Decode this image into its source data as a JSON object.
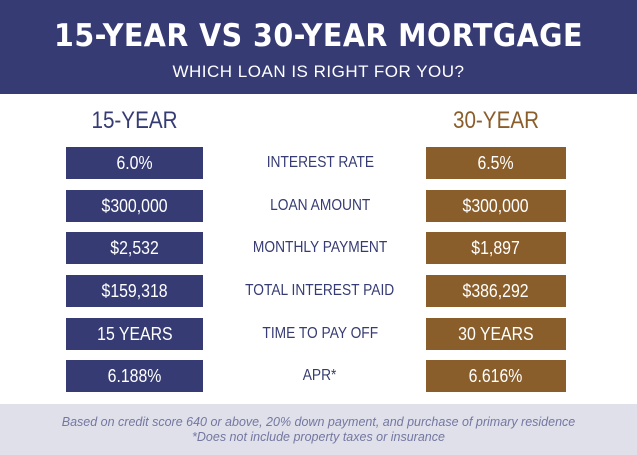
{
  "header": {
    "title": "15-YEAR VS 30-YEAR MORTGAGE",
    "subtitle": "WHICH LOAN IS RIGHT FOR YOU?"
  },
  "columns": {
    "left_heading": "15-YEAR",
    "right_heading": "30-YEAR"
  },
  "rows": [
    {
      "label": "INTEREST RATE",
      "left": "6.0%",
      "right": "6.5%"
    },
    {
      "label": "LOAN AMOUNT",
      "left": "$300,000",
      "right": "$300,000"
    },
    {
      "label": "MONTHLY PAYMENT",
      "left": "$2,532",
      "right": "$1,897"
    },
    {
      "label": "TOTAL INTEREST PAID",
      "left": "$159,318",
      "right": "$386,292"
    },
    {
      "label": "TIME TO PAY OFF",
      "left": "15 YEARS",
      "right": "30 YEARS"
    },
    {
      "label": "APR*",
      "left": "6.188%",
      "right": "6.616%"
    }
  ],
  "footer": {
    "line1": "Based on credit score 640 or above, 20% down payment, and purchase of primary residence",
    "line2": "*Does not include property taxes or insurance"
  },
  "colors": {
    "navy": "#363c73",
    "brown": "#8a5e2b",
    "footer_bg": "#dfe0ea"
  }
}
